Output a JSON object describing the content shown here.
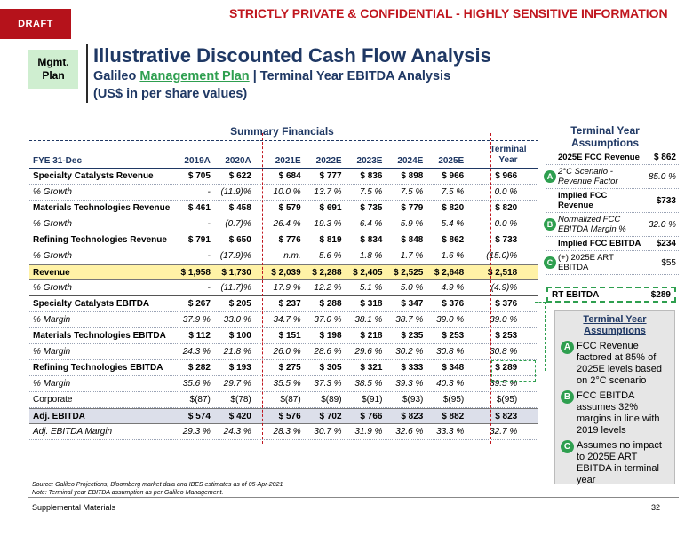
{
  "draft_label": "DRAFT",
  "confidential": "STRICTLY PRIVATE & CONFIDENTIAL - HIGHLY SENSITIVE INFORMATION",
  "mgmt_badge": {
    "line1": "Mgmt.",
    "line2": "Plan"
  },
  "title": "Illustrative Discounted Cash Flow Analysis",
  "subtitle": {
    "prefix": "Galileo ",
    "link": "Management Plan",
    "suffix": " | Terminal Year EBITDA Analysis"
  },
  "units": "(US$ in per share values)",
  "summary_title": "Summary Financials",
  "terminal_header": {
    "line1": "Terminal",
    "line2": "Year"
  },
  "table": {
    "headers": [
      "FYE 31-Dec",
      "2019A",
      "2020A",
      "2021E",
      "2022E",
      "2023E",
      "2024E",
      "2025E",
      ""
    ],
    "rows": [
      {
        "cls": "bold",
        "cells": [
          "Specialty Catalysts Revenue",
          "$ 705",
          "$ 622",
          "$ 684",
          "$ 777",
          "$ 836",
          "$ 898",
          "$ 966",
          "$ 966"
        ]
      },
      {
        "cls": "italic",
        "cells": [
          "% Growth",
          "-",
          "(11.9)%",
          "10.0 %",
          "13.7 %",
          "7.5 %",
          "7.5 %",
          "7.5 %",
          "0.0 %"
        ]
      },
      {
        "cls": "bold",
        "cells": [
          "Materials Technologies Revenue",
          "$ 461",
          "$ 458",
          "$ 579",
          "$ 691",
          "$ 735",
          "$ 779",
          "$ 820",
          "$ 820"
        ]
      },
      {
        "cls": "italic",
        "cells": [
          "% Growth",
          "-",
          "(0.7)%",
          "26.4 %",
          "19.3 %",
          "6.4 %",
          "5.9 %",
          "5.4 %",
          "0.0 %"
        ]
      },
      {
        "cls": "bold",
        "cells": [
          "Refining Technologies Revenue",
          "$ 791",
          "$ 650",
          "$ 776",
          "$ 819",
          "$ 834",
          "$ 848",
          "$ 862",
          "$ 733"
        ]
      },
      {
        "cls": "italic",
        "cells": [
          "% Growth",
          "-",
          "(17.9)%",
          "n.m.",
          "5.6 %",
          "1.8 %",
          "1.7 %",
          "1.6 %",
          "(15.0)%"
        ]
      },
      {
        "cls": "bold hl",
        "cells": [
          "Revenue",
          "$ 1,958",
          "$ 1,730",
          "$ 2,039",
          "$ 2,288",
          "$ 2,405",
          "$ 2,525",
          "$ 2,648",
          "$ 2,518"
        ]
      },
      {
        "cls": "italic sep",
        "cells": [
          "% Growth",
          "-",
          "(11.7)%",
          "17.9 %",
          "12.2 %",
          "5.1 %",
          "5.0 %",
          "4.9 %",
          "(4.9)%"
        ]
      },
      {
        "cls": "bold",
        "cells": [
          "Specialty Catalysts EBITDA",
          "$ 267",
          "$ 205",
          "$ 237",
          "$ 288",
          "$ 318",
          "$ 347",
          "$ 376",
          "$ 376"
        ]
      },
      {
        "cls": "italic",
        "cells": [
          "% Margin",
          "37.9 %",
          "33.0 %",
          "34.7 %",
          "37.0 %",
          "38.1 %",
          "38.7 %",
          "39.0 %",
          "39.0 %"
        ]
      },
      {
        "cls": "bold",
        "cells": [
          "Materials Technologies EBITDA",
          "$ 112",
          "$ 100",
          "$ 151",
          "$ 198",
          "$ 218",
          "$ 235",
          "$ 253",
          "$ 253"
        ]
      },
      {
        "cls": "italic",
        "cells": [
          "% Margin",
          "24.3 %",
          "21.8 %",
          "26.0 %",
          "28.6 %",
          "29.6 %",
          "30.2 %",
          "30.8 %",
          "30.8 %"
        ]
      },
      {
        "cls": "bold",
        "cells": [
          "Refining Technologies EBITDA",
          "$ 282",
          "$ 193",
          "$ 275",
          "$ 305",
          "$ 321",
          "$ 333",
          "$ 348",
          "$ 289"
        ]
      },
      {
        "cls": "italic",
        "cells": [
          "% Margin",
          "35.6 %",
          "29.7 %",
          "35.5 %",
          "37.3 %",
          "38.5 %",
          "39.3 %",
          "40.3 %",
          "39.5 %"
        ]
      },
      {
        "cls": "",
        "cells": [
          "Corporate",
          "$(87)",
          "$(78)",
          "$(87)",
          "$(89)",
          "$(91)",
          "$(93)",
          "$(95)",
          "$(95)"
        ]
      },
      {
        "cls": "bold adj",
        "cells": [
          "Adj. EBITDA",
          "$ 574",
          "$ 420",
          "$ 576",
          "$ 702",
          "$ 766",
          "$ 823",
          "$ 882",
          "$ 823"
        ]
      },
      {
        "cls": "italic",
        "cells": [
          "Adj. EBITDA Margin",
          "29.3 %",
          "24.3 %",
          "28.3 %",
          "30.7 %",
          "31.9 %",
          "32.6 %",
          "33.3 %",
          "32.7 %"
        ]
      }
    ]
  },
  "tya_title": "Terminal Year Assumptions",
  "tya_rows": [
    {
      "label": "2025E FCC Revenue",
      "value": "$ 862",
      "lstyle": "b",
      "vstyle": "b",
      "badge": ""
    },
    {
      "label": "2°C Scenario - Revenue Factor",
      "value": "85.0 %",
      "lstyle": "it",
      "vstyle": "it",
      "badge": "A"
    },
    {
      "label": "Implied FCC Revenue",
      "value": "$733",
      "lstyle": "b",
      "vstyle": "b",
      "badge": ""
    },
    {
      "label": "Normalized FCC EBITDA Margin %",
      "value": "32.0 %",
      "lstyle": "it",
      "vstyle": "it",
      "badge": "B"
    },
    {
      "label": "Implied FCC EBITDA",
      "value": "$234",
      "lstyle": "b",
      "vstyle": "b",
      "badge": ""
    },
    {
      "label": "(+) 2025E ART EBITDA",
      "value": "$55",
      "lstyle": "",
      "vstyle": "",
      "badge": "C"
    }
  ],
  "rt_ebitda": {
    "label": "RT EBITDA",
    "value": "$289"
  },
  "assumptions": {
    "title": "Terminal Year Assumptions",
    "items": [
      {
        "badge": "A",
        "text": "FCC Revenue factored at 85% of 2025E levels based on 2°C scenario"
      },
      {
        "badge": "B",
        "text": "FCC EBITDA assumes 32% margins in line with 2019 levels"
      },
      {
        "badge": "C",
        "text": "Assumes no impact to 2025E ART EBITDA in terminal year"
      }
    ]
  },
  "footnote": {
    "line1": "Source: Galileo Projections, Bloomberg market data and IBES estimates as of 05-Apr-2021",
    "line2": "Note: Terminal year EBITDA assumption as per Galileo Management."
  },
  "footer": {
    "left": "Supplemental Materials",
    "page": "32"
  },
  "colors": {
    "accent_red": "#c0161e",
    "navy": "#1f3864",
    "green": "#2e9f4f",
    "highlight": "#fff2a6"
  }
}
